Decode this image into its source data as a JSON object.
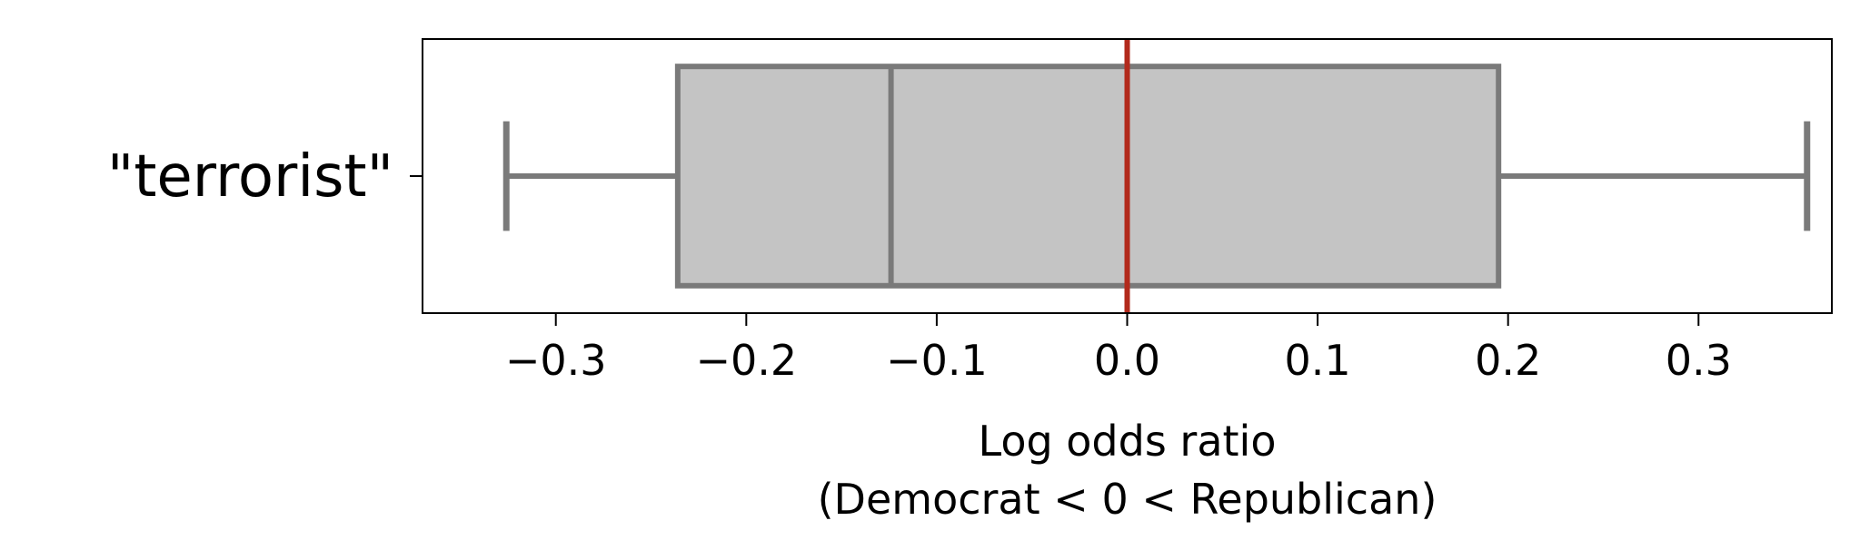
{
  "chart_data": {
    "type": "box",
    "orientation": "horizontal",
    "categories": [
      "\"terrorist\""
    ],
    "boxes": [
      {
        "category": "\"terrorist\"",
        "whisker_low": -0.326,
        "q1": -0.236,
        "median": -0.124,
        "q3": 0.195,
        "whisker_high": 0.357
      }
    ],
    "reference_line": {
      "x": 0.0,
      "color": "#b22a1c"
    },
    "xlim": [
      -0.37,
      0.37
    ],
    "x_ticks": [
      -0.3,
      -0.2,
      -0.1,
      0.0,
      0.1,
      0.2,
      0.3
    ],
    "x_tick_labels": [
      "−0.3",
      "−0.2",
      "−0.1",
      "0.0",
      "0.1",
      "0.2",
      "0.3"
    ],
    "xlabel_line1": "Log odds ratio",
    "xlabel_line2": "(Democrat < 0 < Republican)",
    "grid": false,
    "colors": {
      "box_fill": "#c4c4c4",
      "box_edge": "#7a7a7a",
      "axes": "#000000"
    }
  }
}
